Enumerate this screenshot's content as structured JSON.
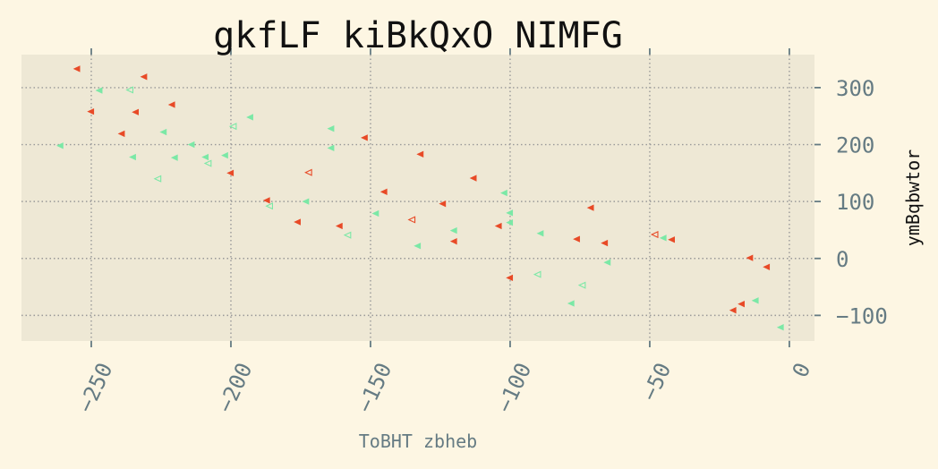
{
  "chart_data": {
    "type": "scatter",
    "title": "gkfLF kiBkQxO NIMFG",
    "xlabel": "ToBHT zbheb",
    "ylabel": "ymBqbwtor",
    "xlim": [
      -275,
      9
    ],
    "ylim": [
      -145,
      358
    ],
    "xticks": [
      -250,
      -200,
      -150,
      -100,
      -50,
      0
    ],
    "xtick_labels": [
      "−250",
      "−200",
      "−150",
      "−100",
      "−50",
      "0"
    ],
    "yticks": [
      -100,
      0,
      100,
      200,
      300
    ],
    "ytick_labels": [
      "−100",
      "0",
      "100",
      "200",
      "300"
    ],
    "grid": true,
    "y_axis_side": "right",
    "marker": "triangle-left",
    "colors": {
      "background": "#fdf6e3",
      "plot_area": "#eee8d5",
      "red_series": "#e84a27",
      "green_series": "#7be8a6",
      "grid": "#999999",
      "tick_text": "#657b83"
    },
    "series": [
      {
        "color": "#e84a27",
        "filled": true,
        "points": [
          [
            -255,
            333
          ],
          [
            -231,
            319
          ],
          [
            -250,
            258
          ],
          [
            -234,
            257
          ],
          [
            -221,
            270
          ],
          [
            -239,
            219
          ],
          [
            -200,
            150
          ],
          [
            -152,
            212
          ],
          [
            -132,
            183
          ],
          [
            -113,
            141
          ],
          [
            -145,
            117
          ],
          [
            -187,
            102
          ],
          [
            -176,
            64
          ],
          [
            -161,
            57
          ],
          [
            -124,
            96
          ],
          [
            -104,
            57
          ],
          [
            -120,
            30
          ],
          [
            -100,
            -34
          ],
          [
            -71,
            89
          ],
          [
            -76,
            34
          ],
          [
            -66,
            27
          ],
          [
            -42,
            33
          ],
          [
            -14,
            1
          ],
          [
            -8,
            -15
          ],
          [
            -17,
            -80
          ],
          [
            -20,
            -91
          ]
        ]
      },
      {
        "color": "#e84a27",
        "filled": false,
        "points": [
          [
            -172,
            151
          ],
          [
            -135,
            68
          ],
          [
            -48,
            42
          ]
        ]
      },
      {
        "color": "#7be8a6",
        "filled": true,
        "points": [
          [
            -247,
            295
          ],
          [
            -193,
            248
          ],
          [
            -261,
            198
          ],
          [
            -224,
            222
          ],
          [
            -214,
            200
          ],
          [
            -164,
            228
          ],
          [
            -164,
            194
          ],
          [
            -235,
            178
          ],
          [
            -220,
            177
          ],
          [
            -209,
            178
          ],
          [
            -202,
            181
          ],
          [
            -173,
            100
          ],
          [
            -148,
            79
          ],
          [
            -102,
            115
          ],
          [
            -100,
            80
          ],
          [
            -100,
            63
          ],
          [
            -120,
            49
          ],
          [
            -133,
            22
          ],
          [
            -89,
            44
          ],
          [
            -78,
            -79
          ],
          [
            -65,
            -7
          ],
          [
            -45,
            36
          ],
          [
            -12,
            -74
          ],
          [
            -3,
            -121
          ]
        ]
      },
      {
        "color": "#7be8a6",
        "filled": false,
        "points": [
          [
            -236,
            296
          ],
          [
            -199,
            232
          ],
          [
            -208,
            167
          ],
          [
            -226,
            140
          ],
          [
            -186,
            92
          ],
          [
            -158,
            41
          ],
          [
            -90,
            -28
          ],
          [
            -74,
            -47
          ]
        ]
      }
    ]
  }
}
